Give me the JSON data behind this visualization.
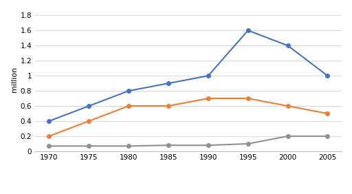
{
  "years": [
    1970,
    1975,
    1980,
    1985,
    1990,
    1995,
    2000,
    2005
  ],
  "car_theft": [
    0.4,
    0.6,
    0.8,
    0.9,
    1.0,
    1.6,
    1.4,
    1.0
  ],
  "house_burgling": [
    0.2,
    0.4,
    0.6,
    0.6,
    0.7,
    0.7,
    0.6,
    0.5
  ],
  "street_robbery": [
    0.07,
    0.07,
    0.07,
    0.08,
    0.08,
    0.1,
    0.2,
    0.2
  ],
  "car_theft_color": "#4472C4",
  "house_burgling_color": "#ED7D31",
  "street_robbery_color": "#909090",
  "ylabel": "million",
  "ylim": [
    0,
    1.9
  ],
  "yticks": [
    0,
    0.2,
    0.4,
    0.6,
    0.8,
    1.0,
    1.2,
    1.4,
    1.6,
    1.8
  ],
  "ytick_labels": [
    "0",
    "0.2",
    "0.4",
    "0.6",
    "0.8",
    "1",
    "1.2",
    "1.4",
    "1.6",
    "1.8"
  ],
  "xticks": [
    1970,
    1975,
    1980,
    1985,
    1990,
    1995,
    2000,
    2005
  ],
  "background_color": "#ffffff",
  "grid_color": "#d9d9d9",
  "marker": "o",
  "markersize": 4,
  "linewidth": 1.5
}
